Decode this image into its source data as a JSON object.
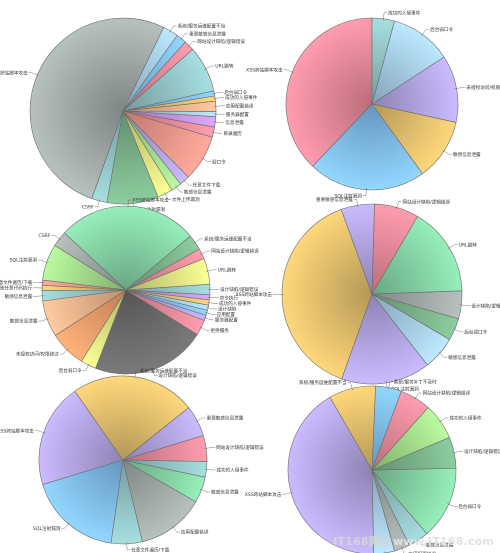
{
  "palette": {
    "pink": "#f08c9c",
    "gold": "#e6c16e",
    "lav": "#b5a7e6",
    "blue": "#82c0f2",
    "gray": "#a3acaa",
    "green": "#86d5a7",
    "dark": "#6d6d6d",
    "orange": "#f8a06c",
    "yellow": "#e0e584",
    "lime": "#a6e08e",
    "peach": "#f6b58e",
    "teal": "#95c7c9",
    "ltblue": "#a8d0ef",
    "dkgreen": "#7eb78e",
    "violet": "#c896e2",
    "salmon": "#f5988c"
  },
  "chart_data": [
    {
      "type": "pie",
      "start_angle": 64,
      "slices": [
        {
          "label": "XSS跨站脚本攻击",
          "value": 58,
          "color": "gray"
        },
        {
          "label": "CSRF",
          "value": 3,
          "color": "teal"
        },
        {
          "label": "SQL注射漏洞",
          "value": 10,
          "color": "dkgreen"
        },
        {
          "label": "文件上传漏洞",
          "value": 3,
          "color": "yellow"
        },
        {
          "label": "敏感信息泄露",
          "value": 2,
          "color": "lime"
        },
        {
          "label": "任意文件下载",
          "value": 2,
          "color": "lav"
        },
        {
          "label": "弱口令",
          "value": 9,
          "color": "salmon"
        },
        {
          "label": "目录遍历",
          "value": 2,
          "color": "pink"
        },
        {
          "label": "信息泄露",
          "value": 2,
          "color": "violet"
        },
        {
          "label": "服务器配置",
          "value": 1,
          "color": "ltblue"
        },
        {
          "label": "应用配置错误",
          "value": 2,
          "color": "peach"
        },
        {
          "label": "成功的入侵事件",
          "value": 1,
          "color": "gold"
        },
        {
          "label": "后台弱口令",
          "value": 1,
          "color": "blue"
        },
        {
          "label": "URL跳转",
          "value": 9,
          "color": "teal"
        },
        {
          "label": "网站设计缺陷/逻辑错误",
          "value": 2,
          "color": "pink"
        },
        {
          "label": "重要敏感信息泄露",
          "value": 2,
          "color": "blue"
        },
        {
          "label": "系统/服务运维配置不当",
          "value": 3,
          "color": "ltblue"
        }
      ]
    },
    {
      "type": "pie",
      "start_angle": 90,
      "slices": [
        {
          "label": "XSS跨站脚本攻击",
          "value": 36,
          "color": "pink"
        },
        {
          "label": "SQL注射漏洞",
          "value": 21,
          "color": "blue"
        },
        {
          "label": "敏感信息泄露",
          "value": 11,
          "color": "gold"
        },
        {
          "label": "未授权访问/权限绕过",
          "value": 12,
          "color": "lav"
        },
        {
          "label": "后台弱口令",
          "value": 11,
          "color": "ltblue"
        },
        {
          "label": "成功的入侵事件",
          "value": 4,
          "color": "teal"
        }
      ]
    },
    {
      "type": "pie",
      "start_angle": 40,
      "slices": [
        {
          "label": "XSS跨站脚本攻击",
          "value": 27,
          "color": "green"
        },
        {
          "label": "CSRF",
          "value": 3,
          "color": "gray"
        },
        {
          "label": "SQL注射漏洞",
          "value": 7,
          "color": "lime"
        },
        {
          "label": "任意文件遍历/下载",
          "value": 1,
          "color": "salmon"
        },
        {
          "label": "文件上传导致任意代码执行",
          "value": 1,
          "color": "gold"
        },
        {
          "label": "敏感信息泄露",
          "value": 2,
          "color": "teal"
        },
        {
          "label": "敏感信息泄露",
          "value": 7,
          "color": "peach"
        },
        {
          "label": "未授权访问/权限绕过",
          "value": 7,
          "color": "orange"
        },
        {
          "label": "后台弱口令",
          "value": 3,
          "color": "yellow"
        },
        {
          "label": "设计缺陷/逻辑错误",
          "value": 22,
          "color": "dark"
        },
        {
          "label": "拒绝服务",
          "value": 3,
          "color": "pink"
        },
        {
          "label": "服务器配置",
          "value": 1,
          "color": "lav"
        },
        {
          "label": "应用配置",
          "value": 1,
          "color": "blue"
        },
        {
          "label": "设计缺陷",
          "value": 1,
          "color": "ltblue"
        },
        {
          "label": "成功的入侵事件",
          "value": 1,
          "color": "gold"
        },
        {
          "label": "命令执行",
          "value": 1,
          "color": "violet"
        },
        {
          "label": "设计缺陷/逻辑错误",
          "value": 2,
          "color": "teal"
        },
        {
          "label": "URL跳转",
          "value": 5,
          "color": "yellow"
        },
        {
          "label": "网站设计缺陷/逻辑错误",
          "value": 2,
          "color": "pink"
        },
        {
          "label": "系统/服务运维配置不当",
          "value": 3,
          "color": "dkgreen"
        }
      ]
    },
    {
      "type": "pie",
      "start_angle": 110,
      "slices": [
        {
          "label": "XSS跨站脚本攻击",
          "value": 39,
          "color": "gold"
        },
        {
          "label": "SQL注射漏洞",
          "value": 16,
          "color": "lav"
        },
        {
          "label": "敏感信息泄露",
          "value": 6,
          "color": "ltblue"
        },
        {
          "label": "后台弱口令",
          "value": 4,
          "color": "dkgreen"
        },
        {
          "label": "设计缺陷/逻辑错误",
          "value": 5,
          "color": "gray"
        },
        {
          "label": "URL跳转",
          "value": 16,
          "color": "green"
        },
        {
          "label": "网站设计缺陷/逻辑错误",
          "value": 8,
          "color": "pink"
        },
        {
          "label": "重要敏感信息泄露",
          "value": 6,
          "color": "lav"
        }
      ]
    },
    {
      "type": "pie",
      "start_angle": 125,
      "slices": [
        {
          "label": "XSS跨站脚本攻击",
          "value": 20,
          "color": "lav"
        },
        {
          "label": "SQL注射漏洞",
          "value": 18,
          "color": "blue"
        },
        {
          "label": "任意文件遍历/下载",
          "value": 6,
          "color": "teal"
        },
        {
          "label": "应用配置错误",
          "value": 13,
          "color": "gray"
        },
        {
          "label": "敏感信息泄露",
          "value": 5,
          "color": "green"
        },
        {
          "label": "成功的入侵事件",
          "value": 3,
          "color": "teal"
        },
        {
          "label": "网站设计缺陷/逻辑错误",
          "value": 5,
          "color": "pink"
        },
        {
          "label": "重要敏感信息泄露",
          "value": 6,
          "color": "lav"
        },
        {
          "label": "系统/服务运维配置不当",
          "value": 24,
          "color": "gold"
        }
      ]
    },
    {
      "type": "pie",
      "start_angle": 120,
      "slices": [
        {
          "label": "XSS跨站脚本攻击",
          "value": 42,
          "color": "lav"
        },
        {
          "label": "SQL注射漏洞",
          "value": 4,
          "color": "ltblue"
        },
        {
          "label": "应用配置错误",
          "value": 3,
          "color": "gray"
        },
        {
          "label": "敏感信息泄露",
          "value": 4,
          "color": "teal"
        },
        {
          "label": "后台弱口令",
          "value": 14,
          "color": "green"
        },
        {
          "label": "设计缺陷/逻辑错误",
          "value": 6,
          "color": "dkgreen"
        },
        {
          "label": "成功的入侵事件",
          "value": 7,
          "color": "lime"
        },
        {
          "label": "网站设计缺陷/逻辑错误",
          "value": 6,
          "color": "pink"
        },
        {
          "label": "系统/服务补丁不及时",
          "value": 5,
          "color": "blue"
        },
        {
          "label": "系统/服务运维配置不当",
          "value": 9,
          "color": "gold"
        }
      ]
    }
  ],
  "watermark": {
    "site": "IT168网站",
    "domain": "www.IT168.com"
  }
}
